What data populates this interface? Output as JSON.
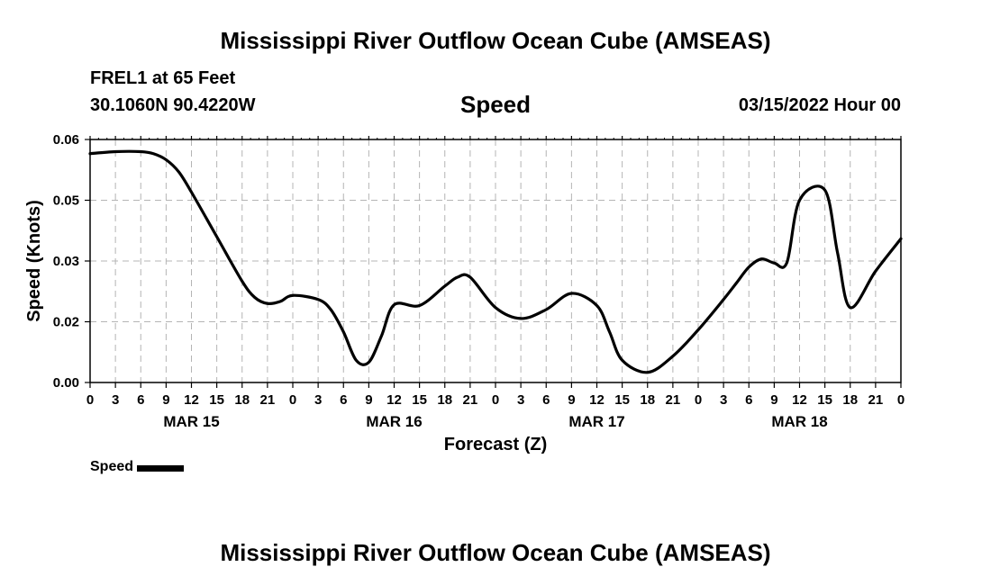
{
  "header": {
    "title": "Mississippi River Outflow Ocean Cube (AMSEAS)",
    "station": "FREL1 at 65 Feet",
    "coordinates": "30.1060N  90.4220W",
    "variable": "Speed",
    "timestamp": "03/15/2022 Hour 00"
  },
  "footer": {
    "title": "Mississippi River Outflow Ocean Cube (AMSEAS)"
  },
  "legend": {
    "label": "Speed"
  },
  "chart_data": {
    "type": "line",
    "title": "Speed",
    "xlabel": "Forecast (Z)",
    "ylabel": "Speed (Knots)",
    "xlim": [
      0,
      96
    ],
    "ylim": [
      0,
      0.06
    ],
    "x_unit": "hours since 03/15/2022 00Z",
    "x_ticks": [
      "0",
      "3",
      "6",
      "9",
      "12",
      "15",
      "18",
      "21",
      "0",
      "3",
      "6",
      "9",
      "12",
      "15",
      "18",
      "21",
      "0",
      "3",
      "6",
      "9",
      "12",
      "15",
      "18",
      "21",
      "0",
      "3",
      "6",
      "9",
      "12",
      "15",
      "18",
      "21",
      "0"
    ],
    "date_labels": [
      "MAR 15",
      "MAR 16",
      "MAR 17",
      "MAR 18"
    ],
    "y_ticks": [
      "0.00",
      "0.02",
      "0.03",
      "0.05",
      "0.06"
    ],
    "grid": true,
    "legend_position": "bottom-left",
    "series": [
      {
        "name": "Speed",
        "color": "#000000",
        "x": [
          0,
          3,
          6,
          7.5,
          9,
          10.5,
          12,
          15,
          18,
          19.5,
          21,
          22.5,
          24,
          27,
          28.5,
          30,
          31.5,
          33,
          34.5,
          36,
          39,
          42,
          43.5,
          45,
          48,
          51,
          54,
          57,
          60,
          61.5,
          63,
          66,
          69,
          72,
          75,
          76.5,
          78,
          79.5,
          81,
          82.5,
          84,
          87,
          88.5,
          90,
          93,
          96
        ],
        "y": [
          0.0565,
          0.057,
          0.057,
          0.0565,
          0.055,
          0.052,
          0.047,
          0.036,
          0.025,
          0.021,
          0.0195,
          0.02,
          0.0215,
          0.0205,
          0.018,
          0.0125,
          0.0055,
          0.005,
          0.0115,
          0.0192,
          0.019,
          0.0238,
          0.026,
          0.026,
          0.0185,
          0.0158,
          0.018,
          0.022,
          0.019,
          0.0125,
          0.0055,
          0.0025,
          0.0065,
          0.013,
          0.0205,
          0.0245,
          0.0285,
          0.0305,
          0.0295,
          0.0296,
          0.045,
          0.0475,
          0.032,
          0.0185,
          0.0275,
          0.0355
        ]
      }
    ]
  }
}
